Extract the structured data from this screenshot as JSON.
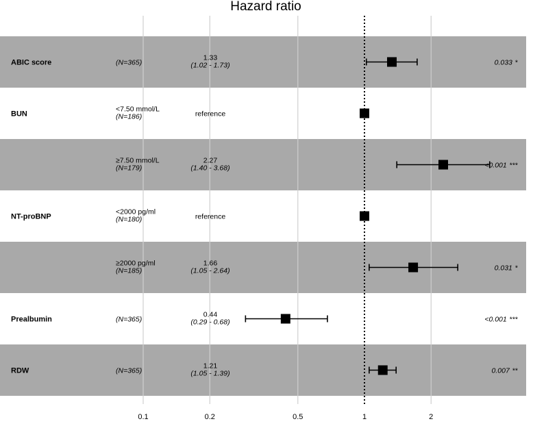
{
  "chart_data": {
    "type": "forest",
    "title": "Hazard ratio",
    "xscale": "log",
    "xticks": [
      0.1,
      0.2,
      0.5,
      1,
      2
    ],
    "xtick_labels": [
      "0.1",
      "0.2",
      "0.5",
      "1",
      "2"
    ],
    "reference_line": 1,
    "rows": [
      {
        "variable": "ABIC score",
        "level": "",
        "n": "(N=365)",
        "hr_text": "1.33",
        "ci_text": "(1.02 - 1.73)",
        "estimate": 1.33,
        "ci_low": 1.02,
        "ci_high": 1.73,
        "p": "0.033",
        "sig": "*",
        "shaded": true
      },
      {
        "variable": "BUN",
        "level": "<7.50 mmol/L",
        "n": "(N=186)",
        "hr_text": "reference",
        "ci_text": "",
        "estimate": 1,
        "ci_low": null,
        "ci_high": null,
        "p": "",
        "sig": "",
        "shaded": false
      },
      {
        "variable": "",
        "level": "≥7.50 mmol/L",
        "n": "(N=179)",
        "hr_text": "2.27",
        "ci_text": "(1.40 - 3.68)",
        "estimate": 2.27,
        "ci_low": 1.4,
        "ci_high": 3.68,
        "p": "<0.001",
        "sig": "***",
        "shaded": true
      },
      {
        "variable": "NT-proBNP",
        "level": "<2000 pg/ml",
        "n": "(N=180)",
        "hr_text": "reference",
        "ci_text": "",
        "estimate": 1,
        "ci_low": null,
        "ci_high": null,
        "p": "",
        "sig": "",
        "shaded": false
      },
      {
        "variable": "",
        "level": "≥2000 pg/ml",
        "n": "(N=185)",
        "hr_text": "1.66",
        "ci_text": "(1.05 - 2.64)",
        "estimate": 1.66,
        "ci_low": 1.05,
        "ci_high": 2.64,
        "p": "0.031",
        "sig": "*",
        "shaded": true
      },
      {
        "variable": "Prealbumin",
        "level": "",
        "n": "(N=365)",
        "hr_text": "0.44",
        "ci_text": "(0.29 - 0.68)",
        "estimate": 0.44,
        "ci_low": 0.29,
        "ci_high": 0.68,
        "p": "<0.001",
        "sig": "***",
        "shaded": false
      },
      {
        "variable": "RDW",
        "level": "",
        "n": "(N=365)",
        "hr_text": "1.21",
        "ci_text": "(1.05 - 1.39)",
        "estimate": 1.21,
        "ci_low": 1.05,
        "ci_high": 1.39,
        "p": "0.007",
        "sig": "**",
        "shaded": true
      }
    ],
    "colors": {
      "shade": "#a9a9a9",
      "grid": "#cfcfcf",
      "marker": "#000000"
    }
  }
}
